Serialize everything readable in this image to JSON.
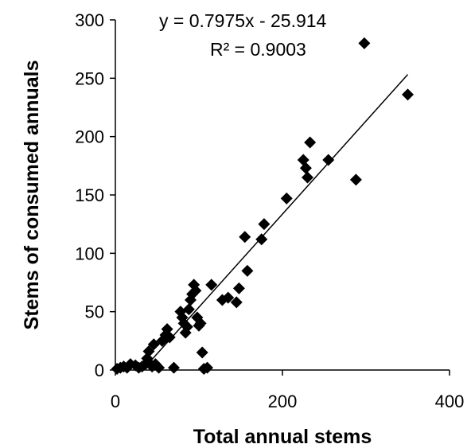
{
  "chart_data": {
    "type": "scatter",
    "title": "",
    "xlabel": "Total annual stems",
    "ylabel": "Stems of consumed annuals",
    "xlim": [
      0,
      400
    ],
    "ylim": [
      0,
      300
    ],
    "x_ticks": [
      "0",
      "200",
      "400"
    ],
    "y_ticks": [
      "0",
      "50",
      "100",
      "150",
      "200",
      "250",
      "300"
    ],
    "grid": false,
    "legend": "none",
    "marker": "diamond",
    "marker_color": "#000000",
    "series": [
      {
        "points": [
          [
            2,
            1
          ],
          [
            6,
            2
          ],
          [
            10,
            3
          ],
          [
            14,
            2
          ],
          [
            18,
            5
          ],
          [
            24,
            4
          ],
          [
            28,
            2
          ],
          [
            32,
            3
          ],
          [
            36,
            5
          ],
          [
            38,
            10
          ],
          [
            40,
            16
          ],
          [
            42,
            5
          ],
          [
            44,
            3
          ],
          [
            46,
            22
          ],
          [
            48,
            5
          ],
          [
            52,
            2
          ],
          [
            56,
            25
          ],
          [
            60,
            30
          ],
          [
            62,
            35
          ],
          [
            65,
            28
          ],
          [
            70,
            2
          ],
          [
            78,
            50
          ],
          [
            80,
            45
          ],
          [
            82,
            40
          ],
          [
            84,
            32
          ],
          [
            86,
            37
          ],
          [
            88,
            52
          ],
          [
            90,
            60
          ],
          [
            92,
            65
          ],
          [
            94,
            73
          ],
          [
            96,
            68
          ],
          [
            98,
            45
          ],
          [
            100,
            38
          ],
          [
            102,
            40
          ],
          [
            104,
            15
          ],
          [
            106,
            1
          ],
          [
            110,
            2
          ],
          [
            115,
            73
          ],
          [
            128,
            60
          ],
          [
            135,
            62
          ],
          [
            145,
            58
          ],
          [
            148,
            70
          ],
          [
            155,
            114
          ],
          [
            158,
            85
          ],
          [
            175,
            112
          ],
          [
            178,
            125
          ],
          [
            205,
            147
          ],
          [
            225,
            180
          ],
          [
            228,
            173
          ],
          [
            230,
            165
          ],
          [
            233,
            195
          ],
          [
            255,
            180
          ],
          [
            288,
            163
          ],
          [
            298,
            280
          ],
          [
            350,
            236
          ]
        ]
      }
    ],
    "trendline": {
      "slope": 0.7975,
      "intercept": -25.914,
      "x_range": [
        32.5,
        350
      ],
      "equation_text": "y = 0.7975x - 25.914",
      "r2_text": "R² = 0.9003"
    }
  }
}
